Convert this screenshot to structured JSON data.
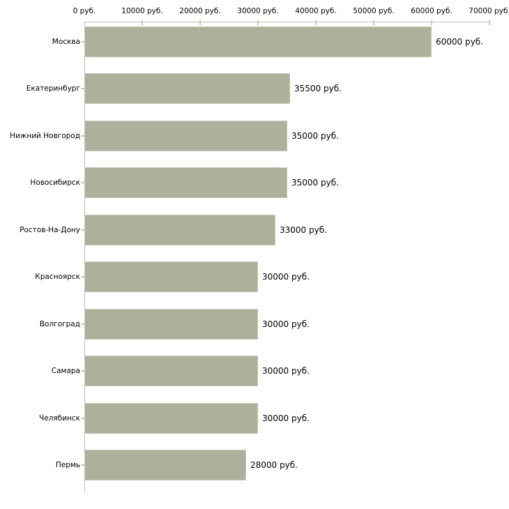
{
  "chart_data": {
    "type": "bar",
    "orientation": "horizontal",
    "title": "",
    "categories": [
      "Москва",
      "Екатеринбург",
      "Нижний Новгород",
      "Новосибирск",
      "Ростов-На-Дону",
      "Красноярск",
      "Волгоград",
      "Самара",
      "Челябинск",
      "Пермь"
    ],
    "values": [
      60000,
      35500,
      35000,
      35000,
      33000,
      30000,
      30000,
      30000,
      30000,
      28000
    ],
    "value_labels": [
      "60000 руб.",
      "35500 руб.",
      "35000 руб.",
      "35000 руб.",
      "33000 руб.",
      "30000 руб.",
      "30000 руб.",
      "30000 руб.",
      "30000 руб.",
      "28000 руб."
    ],
    "x_axis": {
      "position": "top",
      "unit": "руб.",
      "xlim": [
        0,
        70000
      ],
      "ticks": [
        0,
        10000,
        20000,
        30000,
        40000,
        50000,
        60000,
        70000
      ],
      "tick_labels": [
        "0 руб.",
        "10000 руб.",
        "20000 руб.",
        "30000 руб.",
        "40000 руб.",
        "50000 руб.",
        "60000 руб.",
        "70000 руб."
      ]
    },
    "grid": false,
    "legend": false,
    "colors": {
      "bar_fill": "#abb19a",
      "bar_edge": "#c3c8b4",
      "axis_line": "#bdbdbd",
      "tick_mark": "#cdcaa0",
      "text": "#000000",
      "background": "#ffffff"
    }
  }
}
